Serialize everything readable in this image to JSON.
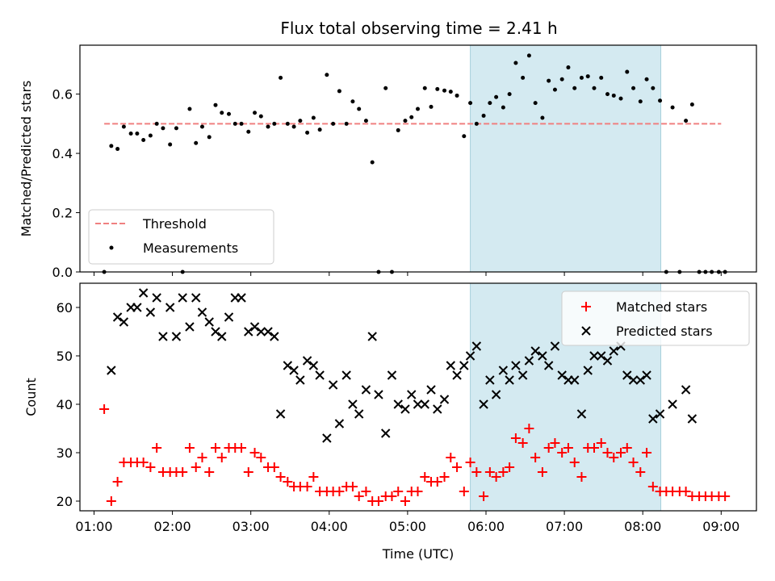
{
  "chart_data": [
    {
      "type": "scatter",
      "title": "Flux total observing time = 2.41 h",
      "ylabel": "Matched/Predicted stars",
      "xlim": [
        0.82,
        9.45
      ],
      "ylim": [
        0,
        0.765
      ],
      "yticks": [
        0.0,
        0.2,
        0.4,
        0.6
      ],
      "ytick_labels": [
        "0.0",
        "0.2",
        "0.4",
        "0.6"
      ],
      "shaded_span": [
        5.8,
        8.23
      ],
      "shaded_color": "#d4eaf1",
      "series": [
        {
          "name": "Threshold",
          "kind": "line",
          "style": "dashed",
          "color": "#f08080",
          "x": [
            1.13,
            9.0
          ],
          "y": [
            0.5,
            0.5
          ]
        },
        {
          "name": "Measurements",
          "kind": "points",
          "color": "#000000",
          "x": [
            1.13,
            1.22,
            1.3,
            1.38,
            1.47,
            1.55,
            1.63,
            1.72,
            1.8,
            1.88,
            1.97,
            2.05,
            2.13,
            2.22,
            2.3,
            2.38,
            2.47,
            2.55,
            2.63,
            2.72,
            2.8,
            2.88,
            2.97,
            3.05,
            3.13,
            3.22,
            3.3,
            3.38,
            3.47,
            3.55,
            3.63,
            3.72,
            3.8,
            3.88,
            3.97,
            4.05,
            4.13,
            4.22,
            4.3,
            4.38,
            4.47,
            4.55,
            4.63,
            4.72,
            4.8,
            4.88,
            4.97,
            5.05,
            5.13,
            5.22,
            5.3,
            5.38,
            5.47,
            5.55,
            5.63,
            5.72,
            5.8,
            5.88,
            5.97,
            6.05,
            6.13,
            6.22,
            6.3,
            6.38,
            6.47,
            6.55,
            6.63,
            6.72,
            6.8,
            6.88,
            6.97,
            7.05,
            7.13,
            7.22,
            7.3,
            7.38,
            7.47,
            7.55,
            7.63,
            7.72,
            7.8,
            7.88,
            7.97,
            8.05,
            8.13,
            8.22,
            8.3,
            8.38,
            8.47,
            8.55,
            8.63,
            8.72,
            8.8,
            8.88,
            8.97,
            9.05
          ],
          "y": [
            0.0,
            0.425,
            0.415,
            0.49,
            0.467,
            0.467,
            0.445,
            0.46,
            0.5,
            0.485,
            0.43,
            0.485,
            0.0,
            0.55,
            0.435,
            0.49,
            0.455,
            0.563,
            0.537,
            0.533,
            0.5,
            0.5,
            0.473,
            0.537,
            0.525,
            0.49,
            0.5,
            0.655,
            0.5,
            0.49,
            0.51,
            0.47,
            0.52,
            0.48,
            0.665,
            0.5,
            0.61,
            0.5,
            0.575,
            0.55,
            0.51,
            0.37,
            0.0,
            0.62,
            0.0,
            0.478,
            0.51,
            0.522,
            0.55,
            0.62,
            0.557,
            0.617,
            0.612,
            0.608,
            0.595,
            0.458,
            0.57,
            0.5,
            0.527,
            0.57,
            0.59,
            0.555,
            0.6,
            0.705,
            0.655,
            0.73,
            0.57,
            0.52,
            0.645,
            0.615,
            0.65,
            0.69,
            0.62,
            0.655,
            0.66,
            0.62,
            0.655,
            0.6,
            0.595,
            0.585,
            0.675,
            0.62,
            0.575,
            0.65,
            0.62,
            0.578,
            0.0,
            0.555,
            0.0,
            0.51,
            0.565,
            0.0,
            0.0,
            0.0,
            0.0,
            0.0
          ]
        }
      ],
      "legend": {
        "placement": "lower-left",
        "entries": [
          "Threshold",
          "Measurements"
        ]
      }
    },
    {
      "type": "scatter",
      "title": "",
      "xlabel": "Time (UTC)",
      "ylabel": "Count",
      "xlim": [
        0.82,
        9.45
      ],
      "ylim": [
        18,
        65
      ],
      "xticks": [
        1,
        2,
        3,
        4,
        5,
        6,
        7,
        8,
        9
      ],
      "xtick_labels": [
        "01:00",
        "02:00",
        "03:00",
        "04:00",
        "05:00",
        "06:00",
        "07:00",
        "08:00",
        "09:00"
      ],
      "yticks": [
        20,
        30,
        40,
        50,
        60
      ],
      "ytick_labels": [
        "20",
        "30",
        "40",
        "50",
        "60"
      ],
      "shaded_span": [
        5.8,
        8.23
      ],
      "shaded_color": "#d4eaf1",
      "series": [
        {
          "name": "Matched stars",
          "marker": "plus",
          "color": "#ff0000",
          "x": [
            1.13,
            1.22,
            1.3,
            1.38,
            1.47,
            1.55,
            1.63,
            1.72,
            1.8,
            1.88,
            1.97,
            2.05,
            2.13,
            2.22,
            2.3,
            2.38,
            2.47,
            2.55,
            2.63,
            2.72,
            2.8,
            2.88,
            2.97,
            3.05,
            3.13,
            3.22,
            3.3,
            3.38,
            3.47,
            3.55,
            3.63,
            3.72,
            3.8,
            3.88,
            3.97,
            4.05,
            4.13,
            4.22,
            4.3,
            4.38,
            4.47,
            4.55,
            4.63,
            4.72,
            4.8,
            4.88,
            4.97,
            5.05,
            5.13,
            5.22,
            5.3,
            5.38,
            5.47,
            5.55,
            5.63,
            5.72,
            5.8,
            5.88,
            5.97,
            6.05,
            6.13,
            6.22,
            6.3,
            6.38,
            6.47,
            6.55,
            6.63,
            6.72,
            6.8,
            6.88,
            6.97,
            7.05,
            7.13,
            7.22,
            7.3,
            7.38,
            7.47,
            7.55,
            7.63,
            7.72,
            7.8,
            7.88,
            7.97,
            8.05,
            8.13,
            8.22,
            8.3,
            8.38,
            8.47,
            8.55,
            8.63,
            8.72,
            8.8,
            8.88,
            8.97,
            9.05
          ],
          "y": [
            39,
            20,
            24,
            28,
            28,
            28,
            28,
            27,
            31,
            26,
            26,
            26,
            26,
            31,
            27,
            29,
            26,
            31,
            29,
            31,
            31,
            31,
            26,
            30,
            29,
            27,
            27,
            25,
            24,
            23,
            23,
            23,
            25,
            22,
            22,
            22,
            22,
            23,
            23,
            21,
            22,
            20,
            20,
            21,
            21,
            22,
            20,
            22,
            22,
            25,
            24,
            24,
            25,
            29,
            27,
            22,
            28,
            26,
            21,
            26,
            25,
            26,
            27,
            33,
            32,
            35,
            29,
            26,
            31,
            32,
            30,
            31,
            28,
            25,
            31,
            31,
            32,
            30,
            29,
            30,
            31,
            28,
            26,
            30,
            23,
            22,
            22,
            22,
            22,
            22,
            21,
            21,
            21,
            21,
            21,
            21
          ]
        },
        {
          "name": "Predicted stars",
          "marker": "x",
          "color": "#000000",
          "x": [
            1.22,
            1.3,
            1.38,
            1.47,
            1.55,
            1.63,
            1.72,
            1.8,
            1.88,
            1.97,
            2.05,
            2.13,
            2.22,
            2.3,
            2.38,
            2.47,
            2.55,
            2.63,
            2.72,
            2.8,
            2.88,
            2.97,
            3.05,
            3.13,
            3.22,
            3.3,
            3.38,
            3.47,
            3.55,
            3.63,
            3.72,
            3.8,
            3.88,
            3.97,
            4.05,
            4.13,
            4.22,
            4.3,
            4.38,
            4.47,
            4.55,
            4.63,
            4.72,
            4.8,
            4.88,
            4.97,
            5.05,
            5.13,
            5.22,
            5.3,
            5.38,
            5.47,
            5.55,
            5.63,
            5.72,
            5.8,
            5.88,
            5.97,
            6.05,
            6.13,
            6.22,
            6.3,
            6.38,
            6.47,
            6.55,
            6.63,
            6.72,
            6.8,
            6.88,
            6.97,
            7.05,
            7.13,
            7.22,
            7.3,
            7.38,
            7.47,
            7.55,
            7.63,
            7.72,
            7.8,
            7.88,
            7.97,
            8.05,
            8.13,
            8.22,
            8.38,
            8.55,
            8.63
          ],
          "y": [
            47,
            58,
            57,
            60,
            60,
            63,
            59,
            62,
            54,
            60,
            54,
            62,
            56,
            62,
            59,
            57,
            55,
            54,
            58,
            62,
            62,
            55,
            56,
            55,
            55,
            54,
            38,
            48,
            47,
            45,
            49,
            48,
            46,
            33,
            44,
            36,
            46,
            40,
            38,
            43,
            54,
            42,
            34,
            46,
            40,
            39,
            42,
            40,
            40,
            43,
            39,
            41,
            48,
            46,
            48,
            50,
            52,
            40,
            45,
            42,
            47,
            45,
            48,
            46,
            49,
            51,
            50,
            48,
            52,
            46,
            45,
            45,
            38,
            47,
            50,
            50,
            49,
            51,
            52,
            46,
            45,
            45,
            46,
            37,
            38,
            40,
            43,
            37
          ]
        }
      ],
      "legend": {
        "placement": "top-right",
        "entries": [
          "Matched stars",
          "Predicted stars"
        ]
      }
    }
  ]
}
